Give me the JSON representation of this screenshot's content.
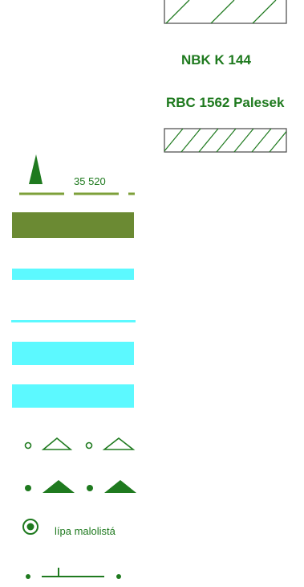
{
  "colors": {
    "green": "#1f7a1f",
    "olive": "#6b8a33",
    "olive_line": "#7da03a",
    "cyan": "#5cf9ff",
    "black": "#000000"
  },
  "legend": {
    "hatch_top": {
      "icon": "hatched-rectangle"
    },
    "nbk_label": "NBK K 144",
    "rbc_label": "RBC 1562 Palesek",
    "hatch_bottom": {
      "icon": "hatched-rectangle"
    },
    "elevation": {
      "icon": "solid-triangle-peak",
      "value": "35 520"
    },
    "olive_band": {
      "icon": "olive-band"
    },
    "water_band_1": {
      "icon": "cyan-band"
    },
    "water_line": {
      "icon": "cyan-line"
    },
    "water_band_2": {
      "icon": "cyan-band"
    },
    "water_band_3": {
      "icon": "cyan-band"
    },
    "open_symbols": {
      "icon": "circle-triangle-outline-pattern"
    },
    "filled_symbols": {
      "icon": "dot-triangle-filled-pattern"
    },
    "tree": {
      "icon": "bullseye-circle",
      "label": "lípa malolistá"
    },
    "boundary": {
      "icon": "dot-tick-line"
    }
  }
}
